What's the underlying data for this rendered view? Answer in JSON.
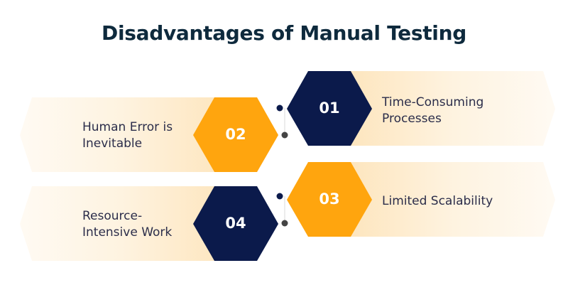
{
  "title": "Disadvantages of Manual Testing",
  "colors": {
    "navy": "#0b1a4b",
    "orange": "#ffa50e",
    "connector_dot": "#0b1a4b",
    "connector_dot_alt": "#444444",
    "banner_tint": "#fdebcc"
  },
  "items": [
    {
      "number": "01",
      "label_lines": [
        "Time-Consuming",
        "Processes"
      ]
    },
    {
      "number": "02",
      "label_lines": [
        "Human Error is",
        "Inevitable"
      ]
    },
    {
      "number": "03",
      "label_lines": [
        "Limited Scalability"
      ]
    },
    {
      "number": "04",
      "label_lines": [
        "Resource-",
        "Intensive Work"
      ]
    }
  ]
}
